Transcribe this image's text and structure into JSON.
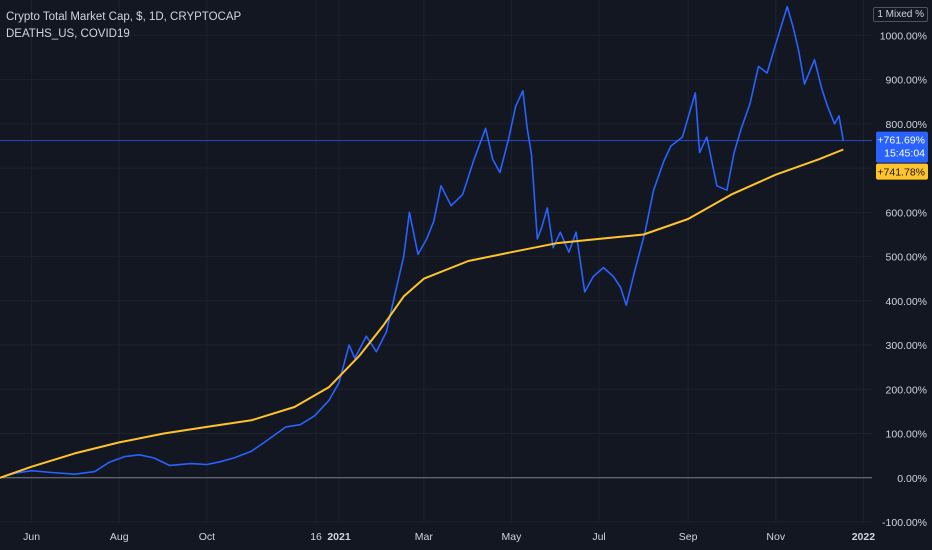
{
  "legend": {
    "main": "Crypto Total Market Cap, $, 1D, CRYPTOCAP",
    "compare": "DEATHS_US, COVID19"
  },
  "scale_mode_label": "1 Mixed %",
  "last_values": {
    "blue_value": "+761.69%",
    "blue_countdown": "15:45:04",
    "yellow_value": "+741.78%"
  },
  "colors": {
    "background": "#131722",
    "grid": "#1e222d",
    "blue": "#2962ff",
    "yellow": "#ffc42b",
    "text": "#d1d4dc",
    "baseline": "#787b86"
  },
  "chart_data": {
    "type": "line",
    "title": "Crypto Total Market Cap, $, 1D, CRYPTOCAP",
    "y_unit": "%",
    "ylim": [
      -100,
      1080
    ],
    "y_ticks": [
      -100,
      0,
      100,
      200,
      300,
      400,
      500,
      600,
      700,
      800,
      900,
      1000
    ],
    "y_tick_labels": [
      "-100.00%",
      "0.00%",
      "100.00%",
      "200.00%",
      "300.00%",
      "400.00%",
      "500.00%",
      "600.00%",
      "700.00%",
      "800.00%",
      "900.00%",
      "1000.00%"
    ],
    "x_range": [
      "2020-05-10",
      "2022-01-07"
    ],
    "x_ticks": [
      "2020-06-01",
      "2020-08-01",
      "2020-10-01",
      "2020-12-16",
      "2021-01-01",
      "2021-03-01",
      "2021-05-01",
      "2021-07-01",
      "2021-09-01",
      "2021-11-01",
      "2022-01-01"
    ],
    "x_tick_labels": [
      "Jun",
      "Aug",
      "Oct",
      "16",
      "2021",
      "Mar",
      "May",
      "Jul",
      "Sep",
      "Nov",
      "2022"
    ],
    "series": [
      {
        "name": "Crypto Total Market Cap, $, 1D, CRYPTOCAP",
        "color": "blue",
        "points": [
          [
            "2020-05-10",
            0
          ],
          [
            "2020-05-20",
            10
          ],
          [
            "2020-06-01",
            16
          ],
          [
            "2020-06-15",
            12
          ],
          [
            "2020-07-01",
            8
          ],
          [
            "2020-07-15",
            14
          ],
          [
            "2020-07-25",
            35
          ],
          [
            "2020-08-05",
            48
          ],
          [
            "2020-08-15",
            52
          ],
          [
            "2020-08-25",
            45
          ],
          [
            "2020-09-05",
            28
          ],
          [
            "2020-09-20",
            32
          ],
          [
            "2020-10-01",
            30
          ],
          [
            "2020-10-10",
            36
          ],
          [
            "2020-10-20",
            45
          ],
          [
            "2020-11-01",
            60
          ],
          [
            "2020-11-10",
            80
          ],
          [
            "2020-11-25",
            115
          ],
          [
            "2020-12-05",
            120
          ],
          [
            "2020-12-15",
            140
          ],
          [
            "2020-12-25",
            175
          ],
          [
            "2021-01-01",
            215
          ],
          [
            "2021-01-08",
            300
          ],
          [
            "2021-01-12",
            270
          ],
          [
            "2021-01-20",
            320
          ],
          [
            "2021-01-27",
            285
          ],
          [
            "2021-02-03",
            330
          ],
          [
            "2021-02-10",
            430
          ],
          [
            "2021-02-15",
            500
          ],
          [
            "2021-02-19",
            600
          ],
          [
            "2021-02-25",
            505
          ],
          [
            "2021-03-03",
            540
          ],
          [
            "2021-03-08",
            580
          ],
          [
            "2021-03-13",
            660
          ],
          [
            "2021-03-20",
            615
          ],
          [
            "2021-03-28",
            640
          ],
          [
            "2021-04-05",
            720
          ],
          [
            "2021-04-13",
            790
          ],
          [
            "2021-04-18",
            720
          ],
          [
            "2021-04-23",
            690
          ],
          [
            "2021-04-29",
            765
          ],
          [
            "2021-05-04",
            840
          ],
          [
            "2021-05-09",
            875
          ],
          [
            "2021-05-12",
            790
          ],
          [
            "2021-05-15",
            730
          ],
          [
            "2021-05-19",
            540
          ],
          [
            "2021-05-22",
            565
          ],
          [
            "2021-05-26",
            610
          ],
          [
            "2021-05-30",
            520
          ],
          [
            "2021-06-04",
            555
          ],
          [
            "2021-06-10",
            510
          ],
          [
            "2021-06-15",
            555
          ],
          [
            "2021-06-21",
            420
          ],
          [
            "2021-06-27",
            455
          ],
          [
            "2021-07-04",
            475
          ],
          [
            "2021-07-11",
            455
          ],
          [
            "2021-07-16",
            430
          ],
          [
            "2021-07-20",
            390
          ],
          [
            "2021-07-26",
            470
          ],
          [
            "2021-08-02",
            555
          ],
          [
            "2021-08-08",
            650
          ],
          [
            "2021-08-15",
            715
          ],
          [
            "2021-08-20",
            750
          ],
          [
            "2021-08-28",
            770
          ],
          [
            "2021-09-06",
            870
          ],
          [
            "2021-09-09",
            735
          ],
          [
            "2021-09-14",
            770
          ],
          [
            "2021-09-21",
            660
          ],
          [
            "2021-09-28",
            650
          ],
          [
            "2021-10-03",
            735
          ],
          [
            "2021-10-08",
            790
          ],
          [
            "2021-10-14",
            845
          ],
          [
            "2021-10-20",
            930
          ],
          [
            "2021-10-26",
            915
          ],
          [
            "2021-11-01",
            980
          ],
          [
            "2021-11-09",
            1065
          ],
          [
            "2021-11-13",
            1020
          ],
          [
            "2021-11-17",
            965
          ],
          [
            "2021-11-21",
            890
          ],
          [
            "2021-11-28",
            945
          ],
          [
            "2021-12-03",
            880
          ],
          [
            "2021-12-07",
            840
          ],
          [
            "2021-12-12",
            800
          ],
          [
            "2021-12-15",
            818
          ],
          [
            "2021-12-18",
            762
          ]
        ]
      },
      {
        "name": "DEATHS_US, COVID19",
        "color": "yellow",
        "points": [
          [
            "2020-05-10",
            0
          ],
          [
            "2020-06-01",
            25
          ],
          [
            "2020-07-01",
            55
          ],
          [
            "2020-08-01",
            80
          ],
          [
            "2020-09-01",
            100
          ],
          [
            "2020-10-01",
            115
          ],
          [
            "2020-11-01",
            130
          ],
          [
            "2020-12-01",
            160
          ],
          [
            "2020-12-25",
            205
          ],
          [
            "2021-01-15",
            275
          ],
          [
            "2021-02-01",
            345
          ],
          [
            "2021-02-15",
            410
          ],
          [
            "2021-03-01",
            450
          ],
          [
            "2021-04-01",
            490
          ],
          [
            "2021-05-01",
            510
          ],
          [
            "2021-06-01",
            530
          ],
          [
            "2021-07-01",
            540
          ],
          [
            "2021-08-01",
            550
          ],
          [
            "2021-09-01",
            585
          ],
          [
            "2021-10-01",
            640
          ],
          [
            "2021-11-01",
            685
          ],
          [
            "2021-12-01",
            720
          ],
          [
            "2021-12-18",
            742
          ]
        ]
      }
    ],
    "current_price_line": 762,
    "zero_line": 0,
    "grid": true
  }
}
